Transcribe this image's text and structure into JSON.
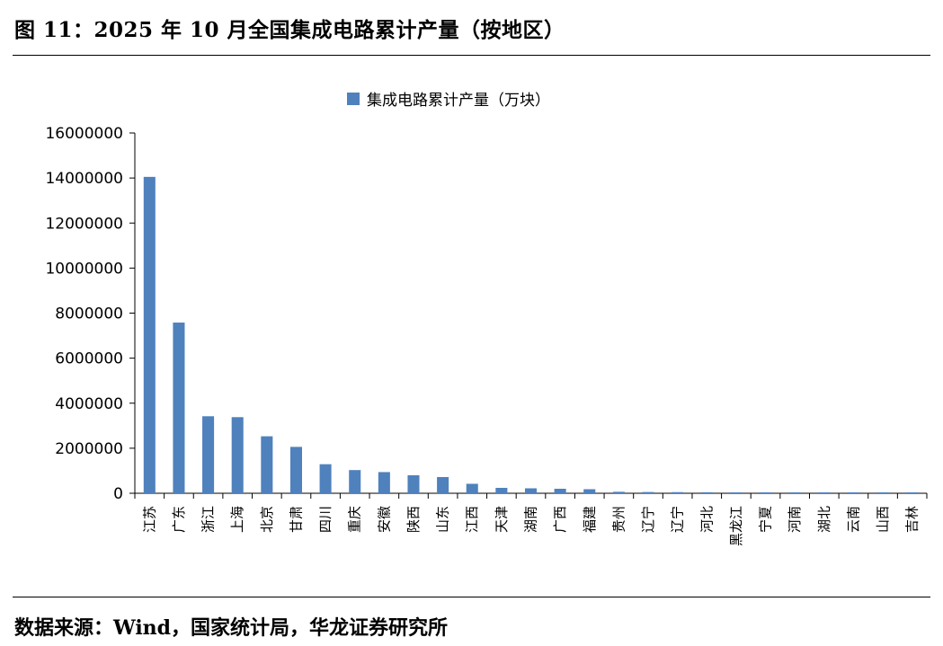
{
  "figure": {
    "title": "图 11：2025 年 10 月全国集成电路累计产量（按地区）",
    "source": "数据来源：Wind，国家统计局，华龙证券研究所"
  },
  "chart_data": {
    "type": "bar",
    "title": "",
    "xlabel": "",
    "ylabel": "",
    "ylim": [
      0,
      16000000
    ],
    "yticks": [
      0,
      2000000,
      4000000,
      6000000,
      8000000,
      10000000,
      12000000,
      14000000,
      16000000
    ],
    "grid": false,
    "legend_position": "top-center",
    "bar_color": "#4f81bd",
    "categories": [
      "江苏",
      "广东",
      "浙江",
      "上海",
      "北京",
      "甘肃",
      "四川",
      "重庆",
      "安徽",
      "陕西",
      "山东",
      "江西",
      "天津",
      "湖南",
      "广西",
      "福建",
      "贵州",
      "辽宁",
      "辽宁",
      "河北",
      "黑龙江",
      "宁夏",
      "河南",
      "湖北",
      "云南",
      "山西",
      "吉林"
    ],
    "series": [
      {
        "name": "集成电路累计产量（万块）",
        "values": [
          14050000,
          7580000,
          3420000,
          3380000,
          2530000,
          2060000,
          1290000,
          1030000,
          940000,
          800000,
          720000,
          420000,
          240000,
          220000,
          200000,
          180000,
          65000,
          55000,
          50000,
          45000,
          38000,
          32000,
          28000,
          24000,
          20000,
          16000,
          12000
        ]
      }
    ]
  }
}
